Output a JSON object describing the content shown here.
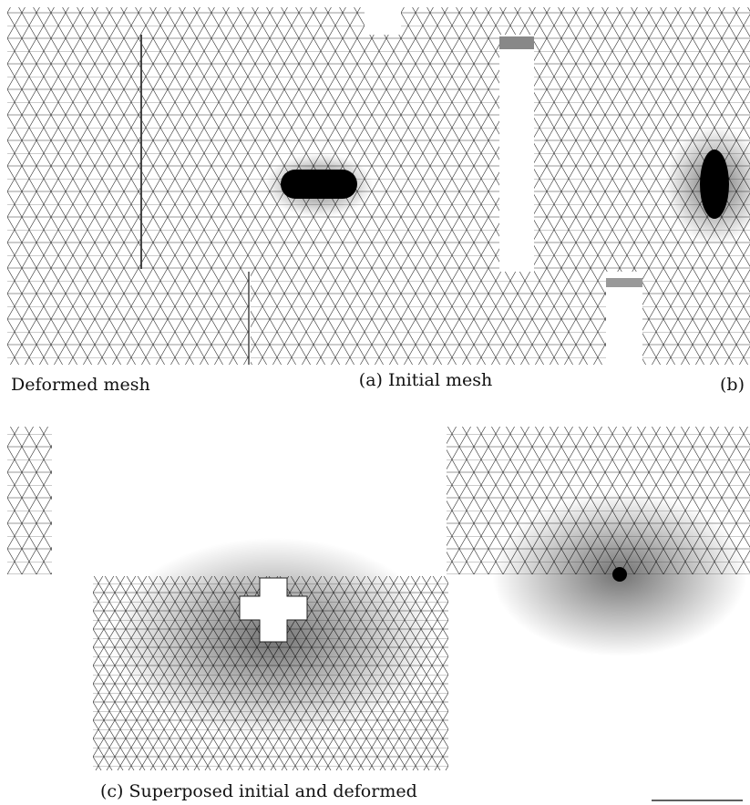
{
  "captions": {
    "deformed": "Deformed mesh",
    "a": "(a) Initial mesh",
    "b": "(b)",
    "c": "(c) Superposed initial and deformed"
  }
}
